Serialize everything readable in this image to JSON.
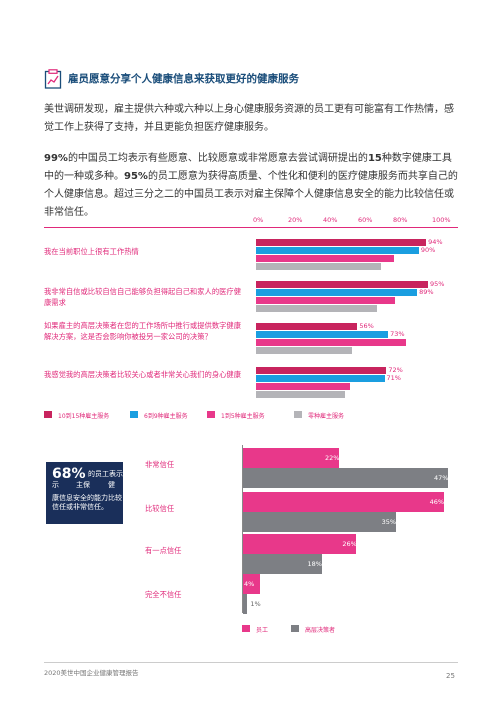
{
  "section": {
    "title": "雇员愿意分享个人健康信息来获取更好的健康服务",
    "icon": "clipboard-chart-icon"
  },
  "intro_text": "美世调研发现，雇主提供六种或六种以上身心健康服务资源的员工更有可能富有工作热情，感觉工作上获得了支持，并且更能负担医疗健康服务。",
  "stat_text": {
    "p1": "99%",
    "p2": "的中国员工均表示有些愿意、比较愿意或非常愿意去尝试调研提出的",
    "p3": "15",
    "p4": "种数字健康工具中的一种或多种。",
    "p5": "95%",
    "p6": "的员工愿意为获得高质量、个性化和便利的医疗健康服务而共享自己的个人健康信息。超过三分之二的中国员工表示对雇主保障个人健康信息安全的能力比较信任或非常信任。"
  },
  "chart_data": [
    {
      "type": "bar",
      "orientation": "horizontal",
      "x_ticks": [
        "0%",
        "20%",
        "40%",
        "60%",
        "80%",
        "100%"
      ],
      "xlim": [
        0,
        100
      ],
      "categories": [
        "我在当前职位上很有工作热情",
        "我非常自信或比较自信自己能够负担得起自己和家人的医疗健康需求",
        "如果雇主的高层决策者在您的工作场所中推行或提供数字健康解决方案，这是否会影响你被投另一家公司的决策？",
        "我感觉我的高层决策者比较关心或者非常关心我们的身心健康"
      ],
      "series": [
        {
          "name": "10到15种雇主服务",
          "color": "#c8245e",
          "values": [
            94,
            95,
            56,
            72
          ]
        },
        {
          "name": "6到9种雇主服务",
          "color": "#1a9ee0",
          "values": [
            90,
            89,
            73,
            71
          ]
        },
        {
          "name": "1到5种雇主服务",
          "color": "#e8388a",
          "values": [
            76,
            77,
            83,
            52
          ]
        },
        {
          "name": "零种雇主服务",
          "color": "#b4b4b8",
          "values": [
            69,
            67,
            53,
            49
          ]
        }
      ],
      "data_labels": [
        [
          "94%",
          "90%"
        ],
        [
          "95%",
          "89%"
        ],
        [
          "56%",
          "73%"
        ],
        [
          "72%",
          "71%"
        ]
      ],
      "legend_placement": "bottom"
    },
    {
      "type": "bar",
      "orientation": "horizontal",
      "categories": [
        "非常信任",
        "比较信任",
        "有一点信任",
        "完全不信任"
      ],
      "series": [
        {
          "name": "员工",
          "color": "#e8388a",
          "values": [
            22,
            46,
            26,
            4
          ]
        },
        {
          "name": "高层决策者",
          "color": "#7d7f84",
          "values": [
            47,
            35,
            18,
            1
          ]
        }
      ],
      "data_labels": {
        "employees": [
          "22%",
          "46%",
          "26%",
          "4%"
        ],
        "executives": [
          "47%",
          "35%",
          "18%",
          "1%"
        ]
      },
      "legend_placement": "bottom"
    }
  ],
  "callout": {
    "big": "68%",
    "line1": "的员工表示",
    "line2": "主保",
    "line3": "健",
    "line4": "康信息安全的能力比较信任或非常信任。"
  },
  "footer": {
    "report": "2020美世中国企业健康管理报告",
    "page": "25"
  }
}
